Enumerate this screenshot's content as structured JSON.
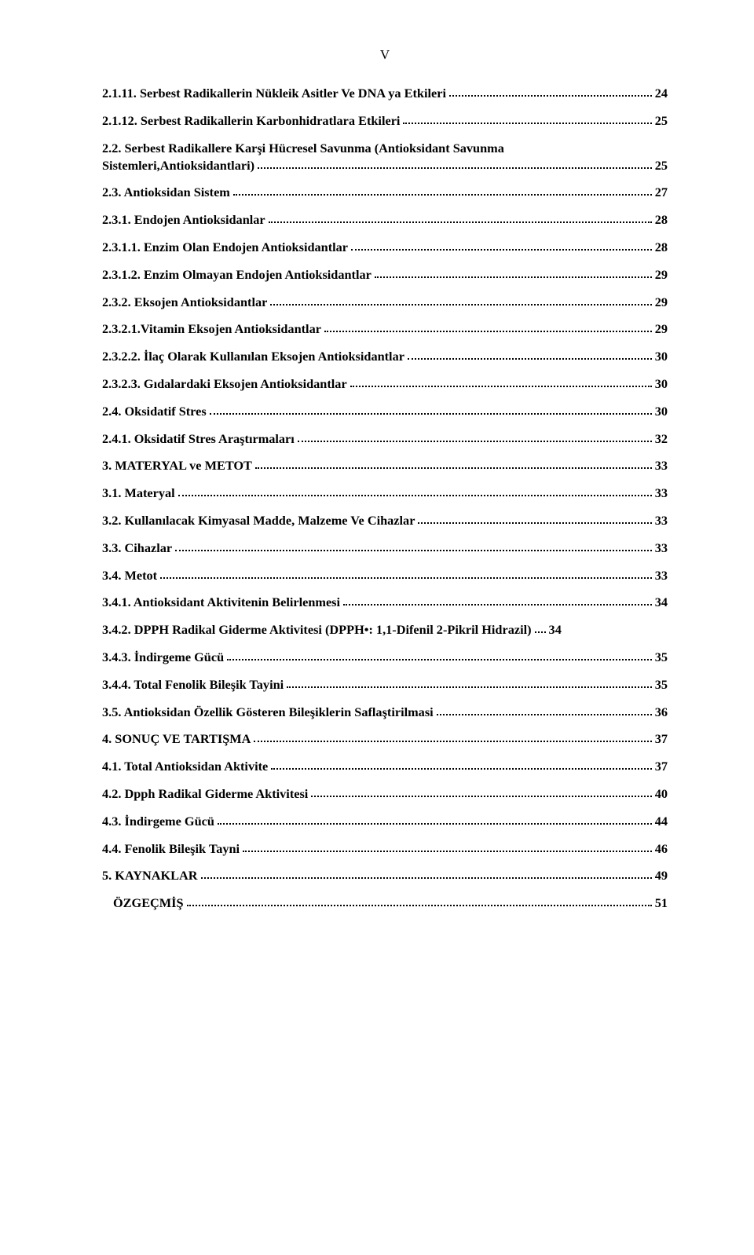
{
  "page_number_roman": "V",
  "text_color": "#000000",
  "background_color": "#ffffff",
  "font_family": "Times New Roman",
  "font_size_pt": 12,
  "font_weight": "bold",
  "entries": [
    {
      "label": "2.1.11. Serbest Radikallerin Nükleik Asitler Ve DNA ya Etkileri",
      "page": "24",
      "indent": false
    },
    {
      "label": "2.1.12. Serbest Radikallerin Karbonhidratlara Etkileri",
      "page": "25",
      "indent": false
    },
    {
      "label": "2.2. Serbest Radikallere Karşi Hücresel Savunma (Antioksidant Savunma Sistemleri,Antioksidantlari)",
      "page": "25",
      "indent": false,
      "multiline": true
    },
    {
      "label": "2.3. Antioksidan Sistem",
      "page": "27",
      "indent": false
    },
    {
      "label": "2.3.1. Endojen Antioksidanlar",
      "page": "28",
      "indent": false
    },
    {
      "label": "2.3.1.1. Enzim Olan Endojen Antioksidantlar",
      "page": "28",
      "indent": false
    },
    {
      "label": "2.3.1.2. Enzim Olmayan Endojen Antioksidantlar",
      "page": "29",
      "indent": false
    },
    {
      "label": "2.3.2. Eksojen Antioksidantlar",
      "page": "29",
      "indent": false
    },
    {
      "label": "2.3.2.1.Vitamin Eksojen Antioksidantlar",
      "page": "29",
      "indent": false
    },
    {
      "label": "2.3.2.2. İlaç Olarak Kullanılan Eksojen Antioksidantlar",
      "page": "30",
      "indent": false
    },
    {
      "label": "2.3.2.3. Gıdalardaki Eksojen Antioksidantlar",
      "page": "30",
      "indent": false
    },
    {
      "label": "2.4. Oksidatif Stres",
      "page": "30",
      "indent": false
    },
    {
      "label": "2.4.1. Oksidatif Stres Araştırmaları",
      "page": "32",
      "indent": false
    },
    {
      "label": "3. MATERYAL ve METOT",
      "page": "33",
      "indent": false
    },
    {
      "label": "3.1. Materyal",
      "page": "33",
      "indent": false
    },
    {
      "label": "3.2. Kullanılacak Kimyasal Madde, Malzeme Ve Cihazlar",
      "page": "33",
      "indent": false
    },
    {
      "label": "3.3. Cihazlar",
      "page": "33",
      "indent": false
    },
    {
      "label": "3.4. Metot",
      "page": "33",
      "indent": false
    },
    {
      "label": "3.4.1. Antioksidant Aktivitenin Belirlenmesi",
      "page": "34",
      "indent": false
    },
    {
      "label": "3.4.2. DPPH Radikal Giderme Aktivitesi (DPPH•: 1,1-Difenil 2-Pikril Hidrazil)",
      "page": "34",
      "indent": false,
      "tightdots": true
    },
    {
      "label": "3.4.3. İndirgeme Gücü",
      "page": "35",
      "indent": false
    },
    {
      "label": "3.4.4. Total Fenolik Bileşik Tayini",
      "page": "35",
      "indent": false
    },
    {
      "label": "3.5. Antioksidan Özellik Gösteren Bileşiklerin Saflaştirilmasi",
      "page": "36",
      "indent": false
    },
    {
      "label": "4. SONUÇ VE TARTIŞMA",
      "page": "37",
      "indent": false
    },
    {
      "label": "4.1. Total Antioksidan Aktivite",
      "page": "37",
      "indent": false
    },
    {
      "label": "4.2. Dpph Radikal Giderme Aktivitesi",
      "page": "40",
      "indent": false
    },
    {
      "label": "4.3. İndirgeme Gücü",
      "page": "44",
      "indent": false
    },
    {
      "label": "4.4. Fenolik Bileşik Tayni",
      "page": "46",
      "indent": false
    },
    {
      "label": "5. KAYNAKLAR",
      "page": "49",
      "indent": false
    },
    {
      "label": "ÖZGEÇMİŞ",
      "page": "51",
      "indent": true
    }
  ]
}
